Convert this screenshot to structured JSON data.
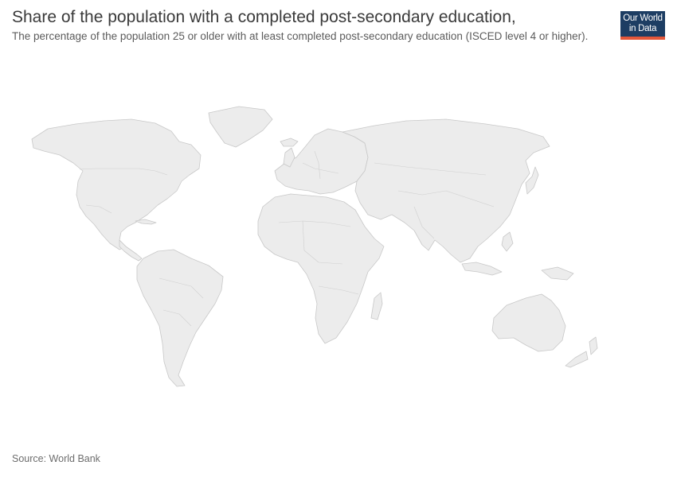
{
  "header": {
    "title": "Share of the population with a completed post-secondary education,",
    "subtitle": "The percentage of the population 25 or older with at least completed post-secondary education (ISCED level 4 or higher)."
  },
  "logo": {
    "line1": "Our World",
    "line2": "in Data",
    "bg_color": "#1d3d63",
    "accent_color": "#e4573a"
  },
  "footer": {
    "source": "Source: World Bank"
  },
  "map": {
    "fill_color": "#ececec",
    "border_color": "#c8c8c8",
    "regions": [
      "North America",
      "Greenland",
      "South America",
      "Europe",
      "Africa",
      "Asia",
      "Australia",
      "New Zealand",
      "Madagascar",
      "Japan",
      "Indonesia",
      "Iceland"
    ]
  }
}
